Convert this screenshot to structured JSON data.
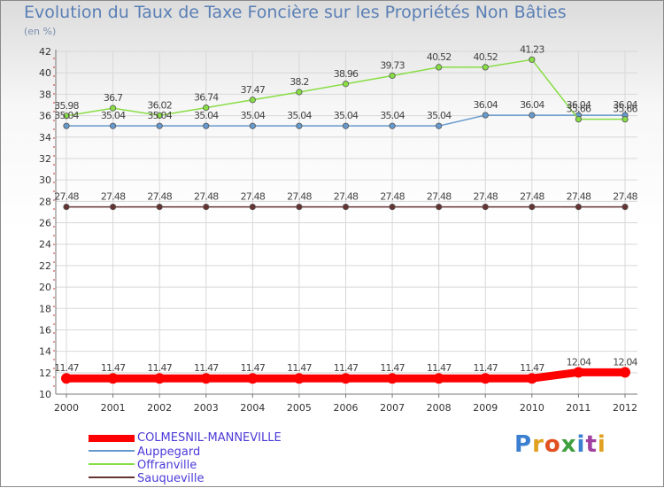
{
  "title": "Evolution du Taux de Taxe Foncière sur les Propriétés Non Bâties",
  "subtitle": "(en %)",
  "logo": {
    "text": "Proxiti",
    "colors": [
      "#3a7fd0",
      "#e0a020",
      "#e05020",
      "#40a040",
      "#3a7fd0",
      "#a040a0",
      "#e0a020"
    ]
  },
  "chart_data": {
    "type": "line",
    "title": "Evolution du Taux de Taxe Foncière sur les Propriétés Non Bâties",
    "ylabel": "(en %)",
    "xlabel": "",
    "x": [
      "2000",
      "2001",
      "2002",
      "2003",
      "2004",
      "2005",
      "2006",
      "2007",
      "2008",
      "2009",
      "2010",
      "2011",
      "2012"
    ],
    "ylim": [
      10,
      42
    ],
    "yticks": [
      "10",
      "12",
      "14",
      "16",
      "18",
      "20",
      "22",
      "24",
      "26",
      "28",
      "30",
      "32",
      "34",
      "36",
      "38",
      "40",
      "42"
    ],
    "grid": true,
    "series": [
      {
        "name": "COLMESNIL-MANNEVILLE",
        "color": "#ff0000",
        "values": [
          11.47,
          11.47,
          11.47,
          11.47,
          11.47,
          11.47,
          11.47,
          11.47,
          11.47,
          11.47,
          11.47,
          12.04,
          12.04
        ],
        "labels": [
          "11.47",
          "11.47",
          "11.47",
          "11.47",
          "11.47",
          "11.47",
          "11.47",
          "11.47",
          "11.47",
          "11.47",
          "11.47",
          "12.04",
          "12.04"
        ]
      },
      {
        "name": "Auppegard",
        "color": "#6699cc",
        "values": [
          35.04,
          35.04,
          35.04,
          35.04,
          35.04,
          35.04,
          35.04,
          35.04,
          35.04,
          36.04,
          36.04,
          36.04,
          36.04
        ],
        "labels": [
          "35.04",
          "35.04",
          "35.04",
          "35.04",
          "35.04",
          "35.04",
          "35.04",
          "35.04",
          "35.04",
          "36.04",
          "36.04",
          "36.04",
          "36.04"
        ]
      },
      {
        "name": "Offranville",
        "color": "#88dd44",
        "values": [
          35.98,
          36.7,
          36.02,
          36.74,
          37.47,
          38.2,
          38.96,
          39.73,
          40.52,
          40.52,
          41.23,
          35.66,
          35.66
        ],
        "labels": [
          "35.98",
          "36.7",
          "36.02",
          "36.74",
          "37.47",
          "38.2",
          "38.96",
          "39.73",
          "40.52",
          "40.52",
          "41.23",
          "35.66",
          "35.66"
        ]
      },
      {
        "name": "Sauqueville",
        "color": "#663333",
        "values": [
          27.48,
          27.48,
          27.48,
          27.48,
          27.48,
          27.48,
          27.48,
          27.48,
          27.48,
          27.48,
          27.48,
          27.48,
          27.48
        ],
        "labels": [
          "27.48",
          "27.48",
          "27.48",
          "27.48",
          "27.48",
          "27.48",
          "27.48",
          "27.48",
          "27.48",
          "27.48",
          "27.48",
          "27.48",
          "27.48"
        ]
      }
    ],
    "legend": {
      "placement": "bottom-left",
      "items": [
        "COLMESNIL-MANNEVILLE",
        "Auppegard",
        "Offranville",
        "Sauqueville"
      ]
    }
  }
}
